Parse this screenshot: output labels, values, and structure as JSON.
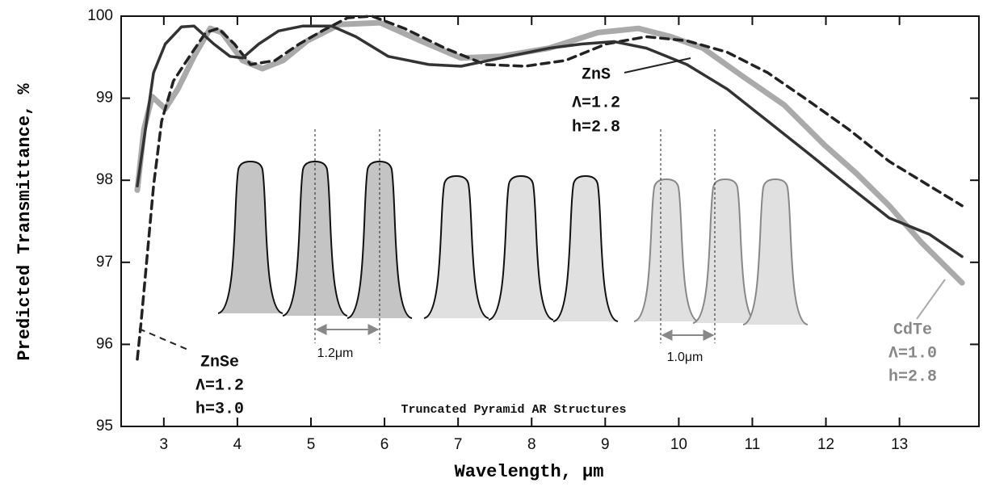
{
  "chart_data": {
    "type": "line",
    "x_label": "Wavelength, μm",
    "y_label": "Predicted Transmittance, %",
    "xlim": [
      2.42,
      14.08
    ],
    "ylim": [
      95,
      100
    ],
    "xticks": [
      3,
      4,
      5,
      6,
      7,
      8,
      9,
      10,
      11,
      12,
      13
    ],
    "yticks": [
      95,
      96,
      97,
      98,
      99,
      100
    ],
    "series": [
      {
        "name": "ZnSe",
        "color": "#222222",
        "style": "dashed",
        "width": 3.5,
        "x": [
          2.64,
          2.69,
          2.75,
          2.86,
          2.97,
          3.13,
          3.35,
          3.57,
          3.74,
          3.96,
          4.18,
          4.51,
          4.84,
          5.17,
          5.5,
          5.83,
          6.27,
          6.82,
          7.37,
          7.91,
          8.46,
          9.01,
          9.56,
          10.11,
          10.66,
          11.21,
          11.76,
          12.31,
          12.86,
          13.41,
          13.85
        ],
        "values": [
          95.82,
          96.26,
          96.85,
          97.93,
          98.72,
          99.21,
          99.51,
          99.8,
          99.85,
          99.66,
          99.41,
          99.46,
          99.66,
          99.83,
          99.98,
          100,
          99.85,
          99.61,
          99.41,
          99.39,
          99.46,
          99.66,
          99.75,
          99.7,
          99.56,
          99.31,
          98.97,
          98.62,
          98.23,
          97.93,
          97.69
        ]
      },
      {
        "name": "ZnS",
        "color": "#333333",
        "style": "solid",
        "width": 3.5,
        "x": [
          2.64,
          2.86,
          3.02,
          3.24,
          3.41,
          3.68,
          3.9,
          4.07,
          4.29,
          4.56,
          4.89,
          5.28,
          5.61,
          6.05,
          6.6,
          7.04,
          7.58,
          8.24,
          8.68,
          9.12,
          9.56,
          10.11,
          10.66,
          11.21,
          11.76,
          12.31,
          12.86,
          13.41,
          13.85
        ],
        "values": [
          97.93,
          99.31,
          99.66,
          99.87,
          99.88,
          99.66,
          99.51,
          99.49,
          99.66,
          99.82,
          99.88,
          99.88,
          99.75,
          99.51,
          99.41,
          99.39,
          99.49,
          99.61,
          99.66,
          99.69,
          99.61,
          99.41,
          99.11,
          98.72,
          98.33,
          97.93,
          97.54,
          97.34,
          97.07
        ]
      },
      {
        "name": "CdTe",
        "color": "#aaaaaa",
        "style": "solid",
        "width": 7,
        "x": [
          2.64,
          2.73,
          2.84,
          3.02,
          3.19,
          3.41,
          3.63,
          3.79,
          4.07,
          4.34,
          4.62,
          4.95,
          5.39,
          5.94,
          6.49,
          7.04,
          7.58,
          8.24,
          8.9,
          9.45,
          9.89,
          10.33,
          10.88,
          11.43,
          11.98,
          12.42,
          12.86,
          13.3,
          13.85
        ],
        "values": [
          97.88,
          98.62,
          99.02,
          98.87,
          99.11,
          99.51,
          99.85,
          99.8,
          99.46,
          99.36,
          99.46,
          99.7,
          99.9,
          99.92,
          99.7,
          99.49,
          99.51,
          99.61,
          99.8,
          99.85,
          99.75,
          99.61,
          99.26,
          98.92,
          98.43,
          98.08,
          97.69,
          97.24,
          96.75
        ]
      }
    ],
    "annotations": {
      "znse": [
        "ZnSe",
        "Λ=1.2",
        "h=3.0"
      ],
      "zns": [
        "ZnS",
        "Λ=1.2",
        "h=2.8"
      ],
      "cdte": [
        "CdTe",
        "Λ=1.0",
        "h=2.8"
      ],
      "structures": "Truncated Pyramid AR Structures",
      "period_a": "1.2μm",
      "period_b": "1.0μm"
    }
  }
}
